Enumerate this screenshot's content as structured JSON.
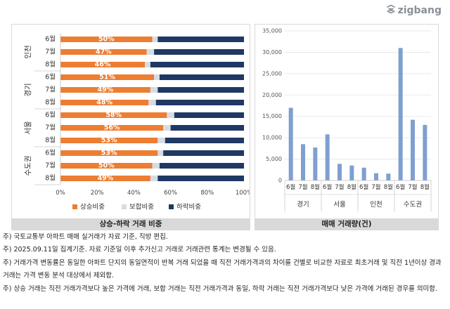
{
  "brand": {
    "name": "zigbang",
    "icon": "zigbang-logo-icon"
  },
  "colors": {
    "rise": "#ED7D31",
    "flat": "#D6DCE4",
    "fall": "#1F3864",
    "volume": "#7F9FD0"
  },
  "chart_data": [
    {
      "type": "bar",
      "orientation": "horizontal",
      "stacked": "percent",
      "caption": "상승-하락 거래 비중",
      "groups": [
        {
          "name": "인천",
          "months": [
            "6월",
            "7월",
            "8월"
          ],
          "rise": [
            50,
            47,
            46
          ],
          "flat": [
            3,
            4,
            3
          ],
          "fall": [
            47,
            49,
            51
          ]
        },
        {
          "name": "경기",
          "months": [
            "6월",
            "7월",
            "8월"
          ],
          "rise": [
            51,
            49,
            48
          ],
          "flat": [
            3,
            4,
            4
          ],
          "fall": [
            46,
            47,
            48
          ]
        },
        {
          "name": "서울",
          "months": [
            "6월",
            "7월",
            "8월"
          ],
          "rise": [
            58,
            56,
            53
          ],
          "flat": [
            4,
            4,
            4
          ],
          "fall": [
            38,
            40,
            43
          ]
        },
        {
          "name": "수도권",
          "months": [
            "6월",
            "7월",
            "8월"
          ],
          "rise": [
            53,
            50,
            49
          ],
          "flat": [
            3,
            4,
            4
          ],
          "fall": [
            44,
            46,
            47
          ]
        }
      ],
      "x_ticks": [
        "0%",
        "20%",
        "40%",
        "60%",
        "80%",
        "100%"
      ],
      "xlim": [
        0,
        100
      ],
      "legend": [
        "상승비중",
        "보합비중",
        "하락비중"
      ],
      "legend_position": "bottom"
    },
    {
      "type": "bar",
      "caption": "매매 거래량(건)",
      "groups": [
        {
          "name": "경기",
          "months": [
            "6월",
            "7월",
            "8월"
          ],
          "values": [
            17000,
            8500,
            7700
          ]
        },
        {
          "name": "서울",
          "months": [
            "6월",
            "7월",
            "8월"
          ],
          "values": [
            10800,
            3900,
            3500
          ]
        },
        {
          "name": "인천",
          "months": [
            "6월",
            "7월",
            "8월"
          ],
          "values": [
            3000,
            1700,
            1600
          ]
        },
        {
          "name": "수도권",
          "months": [
            "6월",
            "7월",
            "8월"
          ],
          "values": [
            31000,
            14200,
            13000
          ]
        }
      ],
      "y_ticks": [
        "0",
        "5,000",
        "10,000",
        "15,000",
        "20,000",
        "25,000",
        "30,000",
        "35,000"
      ],
      "ylim": [
        0,
        35000
      ],
      "grid": true
    }
  ],
  "notes": [
    "주) 국토교통부 아파트 매매 실거래가 자료 기준, 직방 편집.",
    "주) 2025.09.11일 집계기준. 자료 기준일 이후 추가신고 거래로 거래관련 통계는 변경될 수 있음.",
    "주) 거래가격 변동률은 동일한 아파트 단지의 동일면적이 반복 거래 되었을 때 직전 거래가격과의 차이를 건별로 비교한 자료로 최초거래 및 직전 1년이상 경과 거래는 가격 변동 분석 대상에서 제외함.",
    "주) 상승 거래는 직전 거래가격보다 높은 가격에 거래, 보합 거래는 직전 거래가격과 동일, 하락 거래는 직전 거래가격보다 낮은 가격에 거래된 경우를 의미함."
  ]
}
